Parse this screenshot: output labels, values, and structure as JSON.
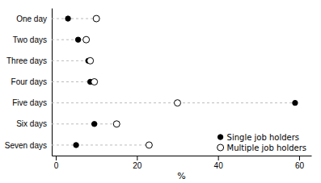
{
  "chart_data": {
    "type": "dot",
    "orientation": "horizontal",
    "categories": [
      "One day",
      "Two days",
      "Three days",
      "Four days",
      "Five days",
      "Six days",
      "Seven days"
    ],
    "series": [
      {
        "name": "Single job holders",
        "color": "#000000",
        "marker": "filled",
        "values": [
          3.0,
          5.5,
          8.0,
          8.5,
          59.0,
          9.5,
          5.0
        ]
      },
      {
        "name": "Multiple job holders",
        "color": "#000000",
        "marker": "open",
        "values": [
          10.0,
          7.5,
          8.5,
          9.5,
          30.0,
          15.0,
          23.0
        ]
      }
    ],
    "color": "#bbbbbb",
    "line_style": "dashed",
    "x_label": "%",
    "xlim": [
      -1,
      63
    ],
    "xticks": [
      0,
      20,
      40,
      60
    ],
    "grid": false,
    "legend": "lower right"
  }
}
